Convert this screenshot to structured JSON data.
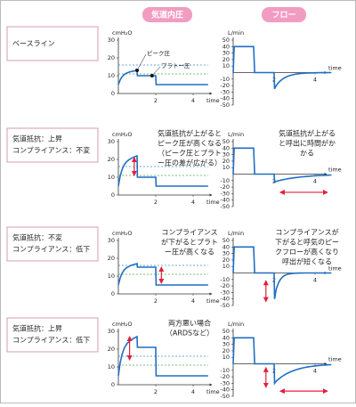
{
  "headers": [
    "気道内圧",
    "フロー"
  ],
  "pressure_axis": {
    "unit": "cmH₂O",
    "yticks": [
      0,
      10,
      20,
      30
    ],
    "xticks": [
      2,
      4
    ],
    "xlabel": "time"
  },
  "flow_axis": {
    "unit": "L/min",
    "yticks": [
      50,
      40,
      30,
      20,
      10,
      -10,
      -20,
      -30,
      -40,
      -50
    ],
    "xticks": [
      2,
      4
    ],
    "xlabel": "time"
  },
  "rows": [
    {
      "label": [
        "ベースライン"
      ],
      "pressure_labels": [
        "ピーク圧",
        "プラトー圧"
      ]
    },
    {
      "label": [
        "気道抵抗：上昇",
        "コンプライアンス：不変"
      ],
      "pressure_note": [
        "気道抵抗が上がると",
        "ピーク圧が高くなる",
        "（ピーク圧とプラト",
        "ー圧の差が広がる）"
      ],
      "flow_note": [
        "気道抵抗が上がる",
        "と呼出に時間がか",
        "かる"
      ]
    },
    {
      "label": [
        "気道抵抗：不変",
        "コンプライアンス：低下"
      ],
      "pressure_note": [
        "コンプライアンス",
        "が下がるとプラト",
        "ー圧が高くなる"
      ],
      "flow_note": [
        "コンプライアンスが",
        "下がると呼気のピー",
        "クフローが高くなり",
        "呼出が短くなる"
      ]
    },
    {
      "label": [
        "気道抵抗：上昇",
        "コンプライアンス：低下"
      ],
      "pressure_note": [
        "両方悪い場合",
        "（ARDSなど）"
      ]
    }
  ]
}
